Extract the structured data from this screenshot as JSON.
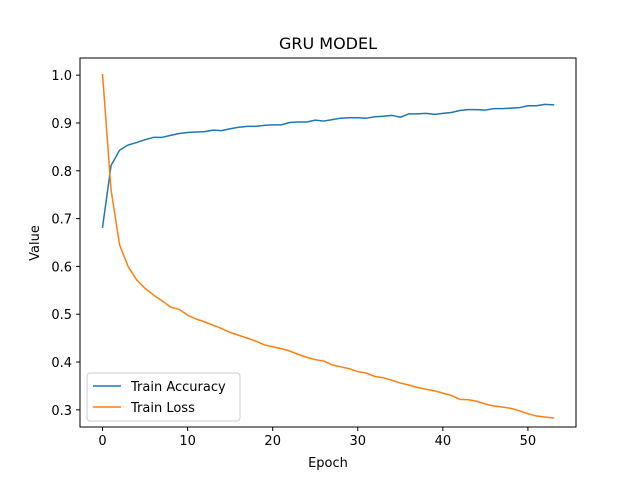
{
  "chart_data": {
    "type": "line",
    "title": "GRU MODEL",
    "xlabel": "Epoch",
    "ylabel": "Value",
    "xlim": [
      -2.65,
      55.65
    ],
    "ylim": [
      0.2641,
      1.0359
    ],
    "xticks": [
      0,
      10,
      20,
      30,
      40,
      50
    ],
    "yticks": [
      0.3,
      0.4,
      0.5,
      0.6,
      0.7,
      0.8,
      0.9,
      1.0
    ],
    "ytick_labels": [
      "0.3",
      "0.4",
      "0.5",
      "0.6",
      "0.7",
      "0.8",
      "0.9",
      "1.0"
    ],
    "grid": false,
    "legend_position": "lower-left",
    "x": [
      0,
      1,
      2,
      3,
      4,
      5,
      6,
      7,
      8,
      9,
      10,
      11,
      12,
      13,
      14,
      15,
      16,
      17,
      18,
      19,
      20,
      21,
      22,
      23,
      24,
      25,
      26,
      27,
      28,
      29,
      30,
      31,
      32,
      33,
      34,
      35,
      36,
      37,
      38,
      39,
      40,
      41,
      42,
      43,
      44,
      45,
      46,
      47,
      48,
      49,
      50,
      51,
      52,
      53
    ],
    "series": [
      {
        "name": "Train Accuracy",
        "color": "#1f77b4",
        "values": [
          0.682,
          0.811,
          0.843,
          0.854,
          0.859,
          0.865,
          0.87,
          0.87,
          0.874,
          0.878,
          0.88,
          0.881,
          0.882,
          0.885,
          0.884,
          0.888,
          0.891,
          0.893,
          0.893,
          0.895,
          0.896,
          0.896,
          0.901,
          0.902,
          0.902,
          0.906,
          0.904,
          0.907,
          0.91,
          0.911,
          0.911,
          0.91,
          0.913,
          0.914,
          0.916,
          0.912,
          0.919,
          0.919,
          0.92,
          0.918,
          0.92,
          0.922,
          0.926,
          0.928,
          0.928,
          0.927,
          0.93,
          0.93,
          0.931,
          0.932,
          0.936,
          0.936,
          0.939,
          0.938
        ]
      },
      {
        "name": "Train Loss",
        "color": "#ff7f0e",
        "values": [
          1.001,
          0.76,
          0.645,
          0.6,
          0.572,
          0.554,
          0.54,
          0.528,
          0.515,
          0.51,
          0.498,
          0.49,
          0.484,
          0.477,
          0.47,
          0.462,
          0.456,
          0.45,
          0.444,
          0.436,
          0.432,
          0.428,
          0.423,
          0.416,
          0.41,
          0.405,
          0.402,
          0.394,
          0.39,
          0.386,
          0.38,
          0.377,
          0.37,
          0.367,
          0.362,
          0.356,
          0.352,
          0.347,
          0.343,
          0.34,
          0.335,
          0.33,
          0.322,
          0.321,
          0.318,
          0.312,
          0.308,
          0.306,
          0.303,
          0.298,
          0.292,
          0.287,
          0.285,
          0.283
        ]
      }
    ]
  }
}
